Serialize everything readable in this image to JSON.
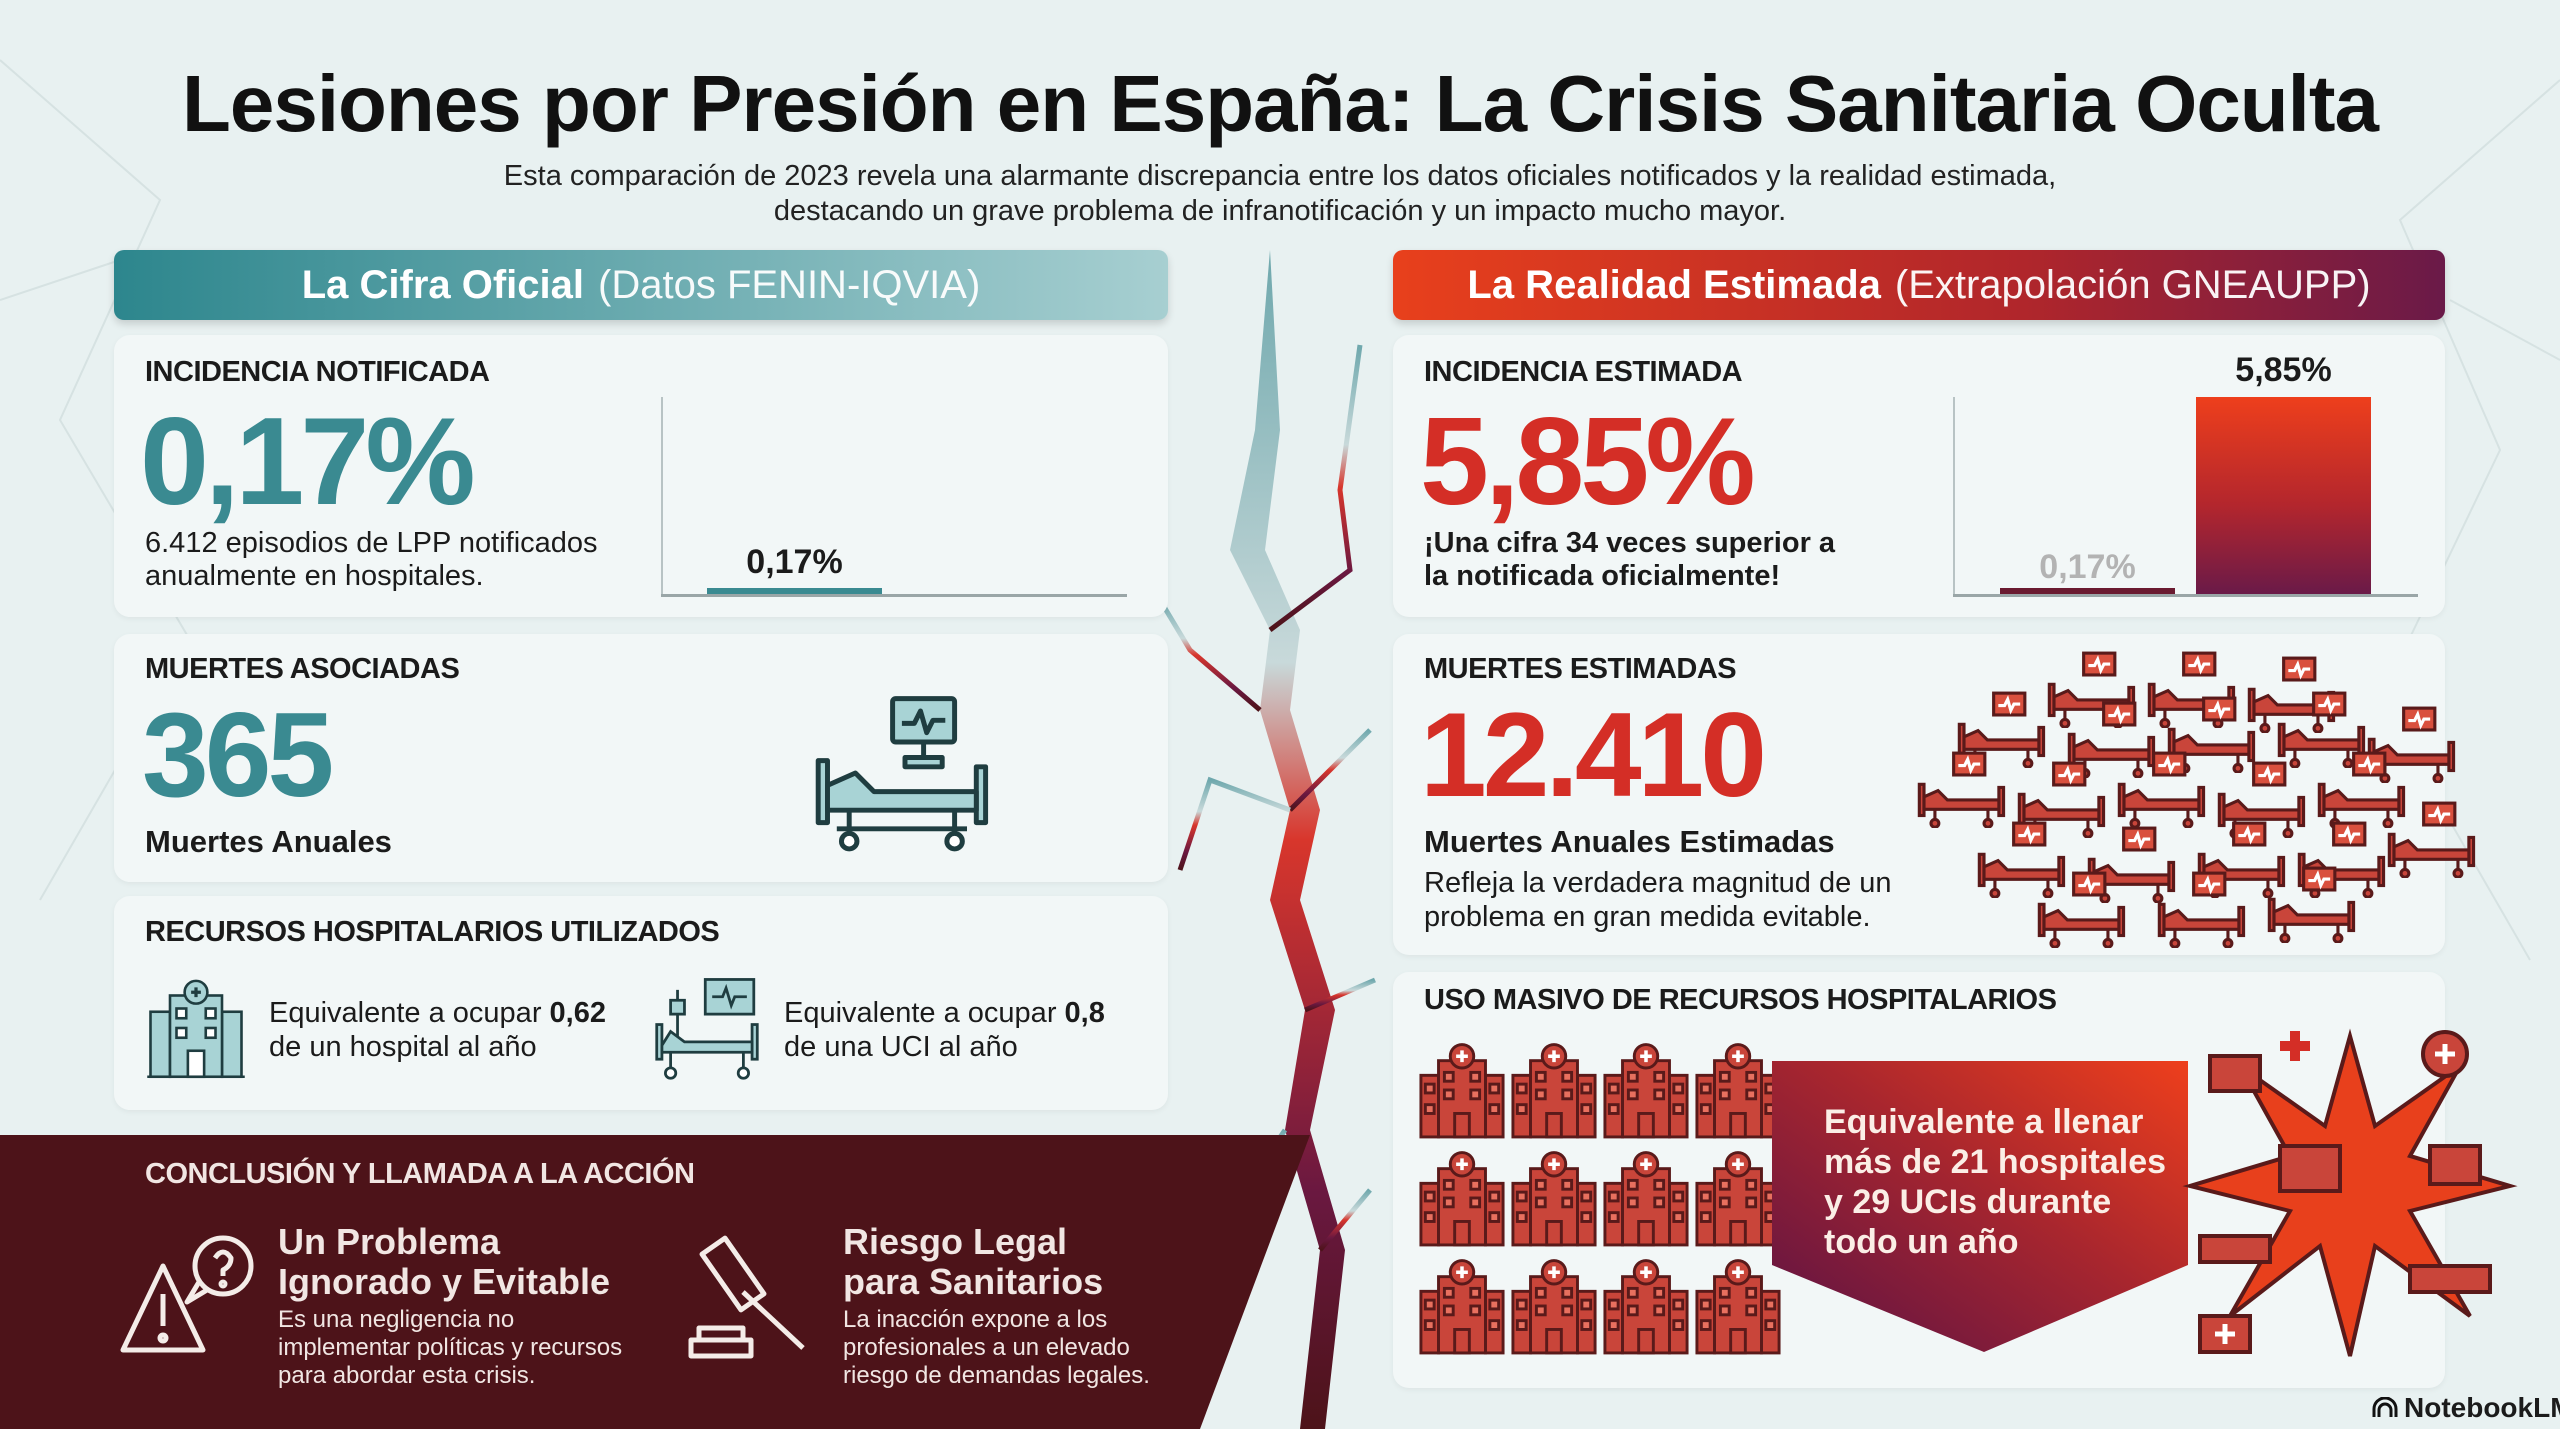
{
  "title": "Lesiones por Presión en España: La Crisis Sanitaria Oculta",
  "subtitle": [
    "Esta comparación de 2023 revela una alarmante discrepancia entre los datos oficiales notificados y la realidad estimada,",
    "destacando un grave problema de infranotificación y un impacto mucho mayor."
  ],
  "official": {
    "header_bold": "La Cifra Oficial",
    "header_light": "(Datos FENIN-IQVIA)",
    "incidence": {
      "label": "INCIDENCIA NOTIFICADA",
      "value": "0,17%",
      "desc": [
        "6.412 episodios de LPP notificados",
        "anualmente en hospitales."
      ],
      "bar_label": "0,17%",
      "bar_value": 0.17
    },
    "deaths": {
      "label": "MUERTES ASOCIADAS",
      "value": "365",
      "desc": "Muertes Anuales"
    },
    "resources": {
      "label": "RECURSOS HOSPITALARIOS UTILIZADOS",
      "hospital": {
        "text": "Equivalente a ocupar",
        "value": "0,62",
        "text2": "de un hospital al año"
      },
      "icu": {
        "text": "Equivalente a ocupar",
        "value": "0,8",
        "text2": "de una UCI al año"
      }
    }
  },
  "estimated": {
    "header_bold": "La Realidad Estimada",
    "header_light": "(Extrapolación GNEAUPP)",
    "incidence": {
      "label": "INCIDENCIA ESTIMADA",
      "value": "5,85%",
      "desc": [
        "¡Una cifra 34 veces superior a",
        "la notificada oficialmente!"
      ],
      "bars": [
        {
          "label": "0,17%",
          "value": 0.17
        },
        {
          "label": "5,85%",
          "value": 5.85
        }
      ]
    },
    "deaths": {
      "label": "MUERTES ESTIMADAS",
      "value": "12.410",
      "desc": "Muertes Anuales Estimadas",
      "desc2": [
        "Refleja la verdadera magnitud de un",
        "problema en gran medida evitable."
      ]
    },
    "resources": {
      "label": "USO MASIVO DE RECURSOS HOSPITALARIOS",
      "arrow_text": [
        "Equivalente a llenar",
        "más de 21 hospitales",
        "y 29 UCIs durante",
        "todo un año"
      ]
    }
  },
  "conclusion": {
    "label": "CONCLUSIÓN Y LLAMADA A LA ACCIÓN",
    "items": [
      {
        "title": [
          "Un Problema",
          "Ignorado y Evitable"
        ],
        "desc": [
          "Es una negligencia no",
          "implementar políticas y recursos",
          "para abordar esta crisis."
        ],
        "icon": "warning-question-icon"
      },
      {
        "title": [
          "Riesgo Legal",
          "para Sanitarios"
        ],
        "desc": [
          "La inacción expone a los",
          "profesionales a un elevado",
          "riesgo de demandas legales."
        ],
        "icon": "gavel-icon"
      }
    ]
  },
  "brand": "NotebookLM",
  "colors": {
    "teal": "#3a8a91",
    "red": "#d42e26",
    "maroon": "#4d1319",
    "bg": "#e8f1f1"
  }
}
